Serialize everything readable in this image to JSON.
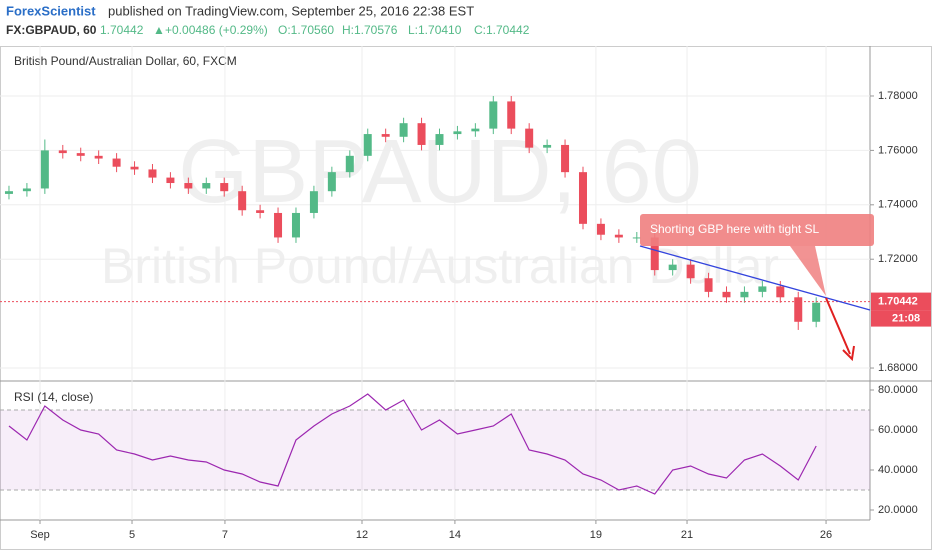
{
  "header": {
    "author": "ForexScientist",
    "published": "published on TradingView.com, September 25, 2016 22:38 EST",
    "symbol": "FX:GBPAUD, 60",
    "price": "1.70442",
    "arrow": "▲",
    "change": "+0.00486 (+0.29%)",
    "ohlc": [
      "O:1.70560",
      "H:1.70576",
      "L:1.70410",
      "C:1.70442"
    ]
  },
  "chart_data": [
    {
      "type": "candlestick",
      "title": "British Pound/Australian Dollar, 60, FXCM",
      "watermark": [
        "GBPAUD, 60",
        "British Pound/Australian Dollar"
      ],
      "annotation": "Shorting GBP here with tight SL",
      "up_color": "#53b987",
      "down_color": "#eb4d5c",
      "grid": true,
      "last_price": 1.70442,
      "countdown": "21:08",
      "x": [
        0,
        1,
        2,
        3,
        4,
        5,
        6,
        7,
        8,
        9,
        10,
        11,
        12,
        13,
        14,
        15,
        16,
        17,
        18,
        19,
        20,
        21,
        22,
        23,
        24,
        25,
        26,
        27,
        28,
        29,
        30,
        31,
        32,
        33,
        34,
        35,
        36,
        37,
        38,
        39,
        40,
        41,
        42,
        43,
        44,
        45
      ],
      "open": [
        1.744,
        1.745,
        1.746,
        1.76,
        1.759,
        1.758,
        1.757,
        1.754,
        1.753,
        1.75,
        1.748,
        1.746,
        1.748,
        1.745,
        1.738,
        1.737,
        1.728,
        1.737,
        1.745,
        1.752,
        1.758,
        1.766,
        1.765,
        1.77,
        1.762,
        1.766,
        1.767,
        1.768,
        1.778,
        1.768,
        1.761,
        1.762,
        1.752,
        1.733,
        1.729,
        1.728,
        1.728,
        1.716,
        1.718,
        1.713,
        1.708,
        1.706,
        1.708,
        1.71,
        1.706,
        1.697
      ],
      "high": [
        1.747,
        1.748,
        1.764,
        1.762,
        1.761,
        1.76,
        1.759,
        1.756,
        1.755,
        1.752,
        1.75,
        1.75,
        1.75,
        1.747,
        1.74,
        1.739,
        1.739,
        1.747,
        1.754,
        1.76,
        1.768,
        1.768,
        1.772,
        1.772,
        1.768,
        1.769,
        1.77,
        1.78,
        1.78,
        1.77,
        1.764,
        1.764,
        1.754,
        1.735,
        1.731,
        1.73,
        1.73,
        1.72,
        1.72,
        1.715,
        1.71,
        1.71,
        1.712,
        1.712,
        1.708,
        1.706
      ],
      "low": [
        1.742,
        1.743,
        1.744,
        1.757,
        1.756,
        1.755,
        1.752,
        1.751,
        1.748,
        1.746,
        1.744,
        1.744,
        1.743,
        1.736,
        1.735,
        1.726,
        1.726,
        1.735,
        1.743,
        1.75,
        1.756,
        1.763,
        1.763,
        1.76,
        1.76,
        1.764,
        1.765,
        1.766,
        1.766,
        1.759,
        1.759,
        1.75,
        1.731,
        1.727,
        1.726,
        1.726,
        1.714,
        1.714,
        1.711,
        1.706,
        1.704,
        1.704,
        1.706,
        1.704,
        1.694,
        1.695
      ],
      "close": [
        1.745,
        1.746,
        1.76,
        1.759,
        1.758,
        1.757,
        1.754,
        1.753,
        1.75,
        1.748,
        1.746,
        1.748,
        1.745,
        1.738,
        1.737,
        1.728,
        1.737,
        1.745,
        1.752,
        1.758,
        1.766,
        1.765,
        1.77,
        1.762,
        1.766,
        1.767,
        1.768,
        1.778,
        1.768,
        1.761,
        1.762,
        1.752,
        1.733,
        1.729,
        1.728,
        1.728,
        1.716,
        1.718,
        1.713,
        1.708,
        1.706,
        1.708,
        1.71,
        1.706,
        1.697,
        1.704
      ],
      "xlim": [
        -0.5,
        48
      ],
      "xticks": [
        {
          "value": 1.73,
          "label": "Sep"
        },
        {
          "value": 6.86,
          "label": "5"
        },
        {
          "value": 12.04,
          "label": "7"
        },
        {
          "value": 19.68,
          "label": "12"
        },
        {
          "value": 24.86,
          "label": "14"
        },
        {
          "value": 32.72,
          "label": "19"
        },
        {
          "value": 37.8,
          "label": "21"
        },
        {
          "value": 45.55,
          "label": "26"
        }
      ],
      "ylim": [
        1.6756,
        1.7969
      ],
      "yticks": [
        {
          "value": 1.68,
          "label": "1.68000"
        },
        {
          "value": 1.72,
          "label": "1.72000"
        },
        {
          "value": 1.74,
          "label": "1.74000"
        },
        {
          "value": 1.76,
          "label": "1.76000"
        },
        {
          "value": 1.78,
          "label": "1.78000"
        }
      ]
    },
    {
      "type": "line",
      "title": "RSI (14, close)",
      "color": "#9c27b0",
      "band": [
        30,
        70
      ],
      "values": [
        62,
        55,
        72,
        65,
        60,
        58,
        50,
        48,
        45,
        47,
        45,
        44,
        40,
        38,
        34,
        32,
        55,
        62,
        68,
        72,
        78,
        70,
        75,
        60,
        65,
        58,
        60,
        62,
        68,
        50,
        48,
        45,
        38,
        35,
        30,
        32,
        28,
        40,
        42,
        38,
        36,
        45,
        48,
        42,
        35,
        52
      ],
      "ylim": [
        15,
        84
      ],
      "yticks": [
        {
          "value": 20,
          "label": "20.0000"
        },
        {
          "value": 40,
          "label": "40.0000"
        },
        {
          "value": 60,
          "label": "60.0000"
        },
        {
          "value": 80,
          "label": "80.0000"
        }
      ]
    }
  ]
}
